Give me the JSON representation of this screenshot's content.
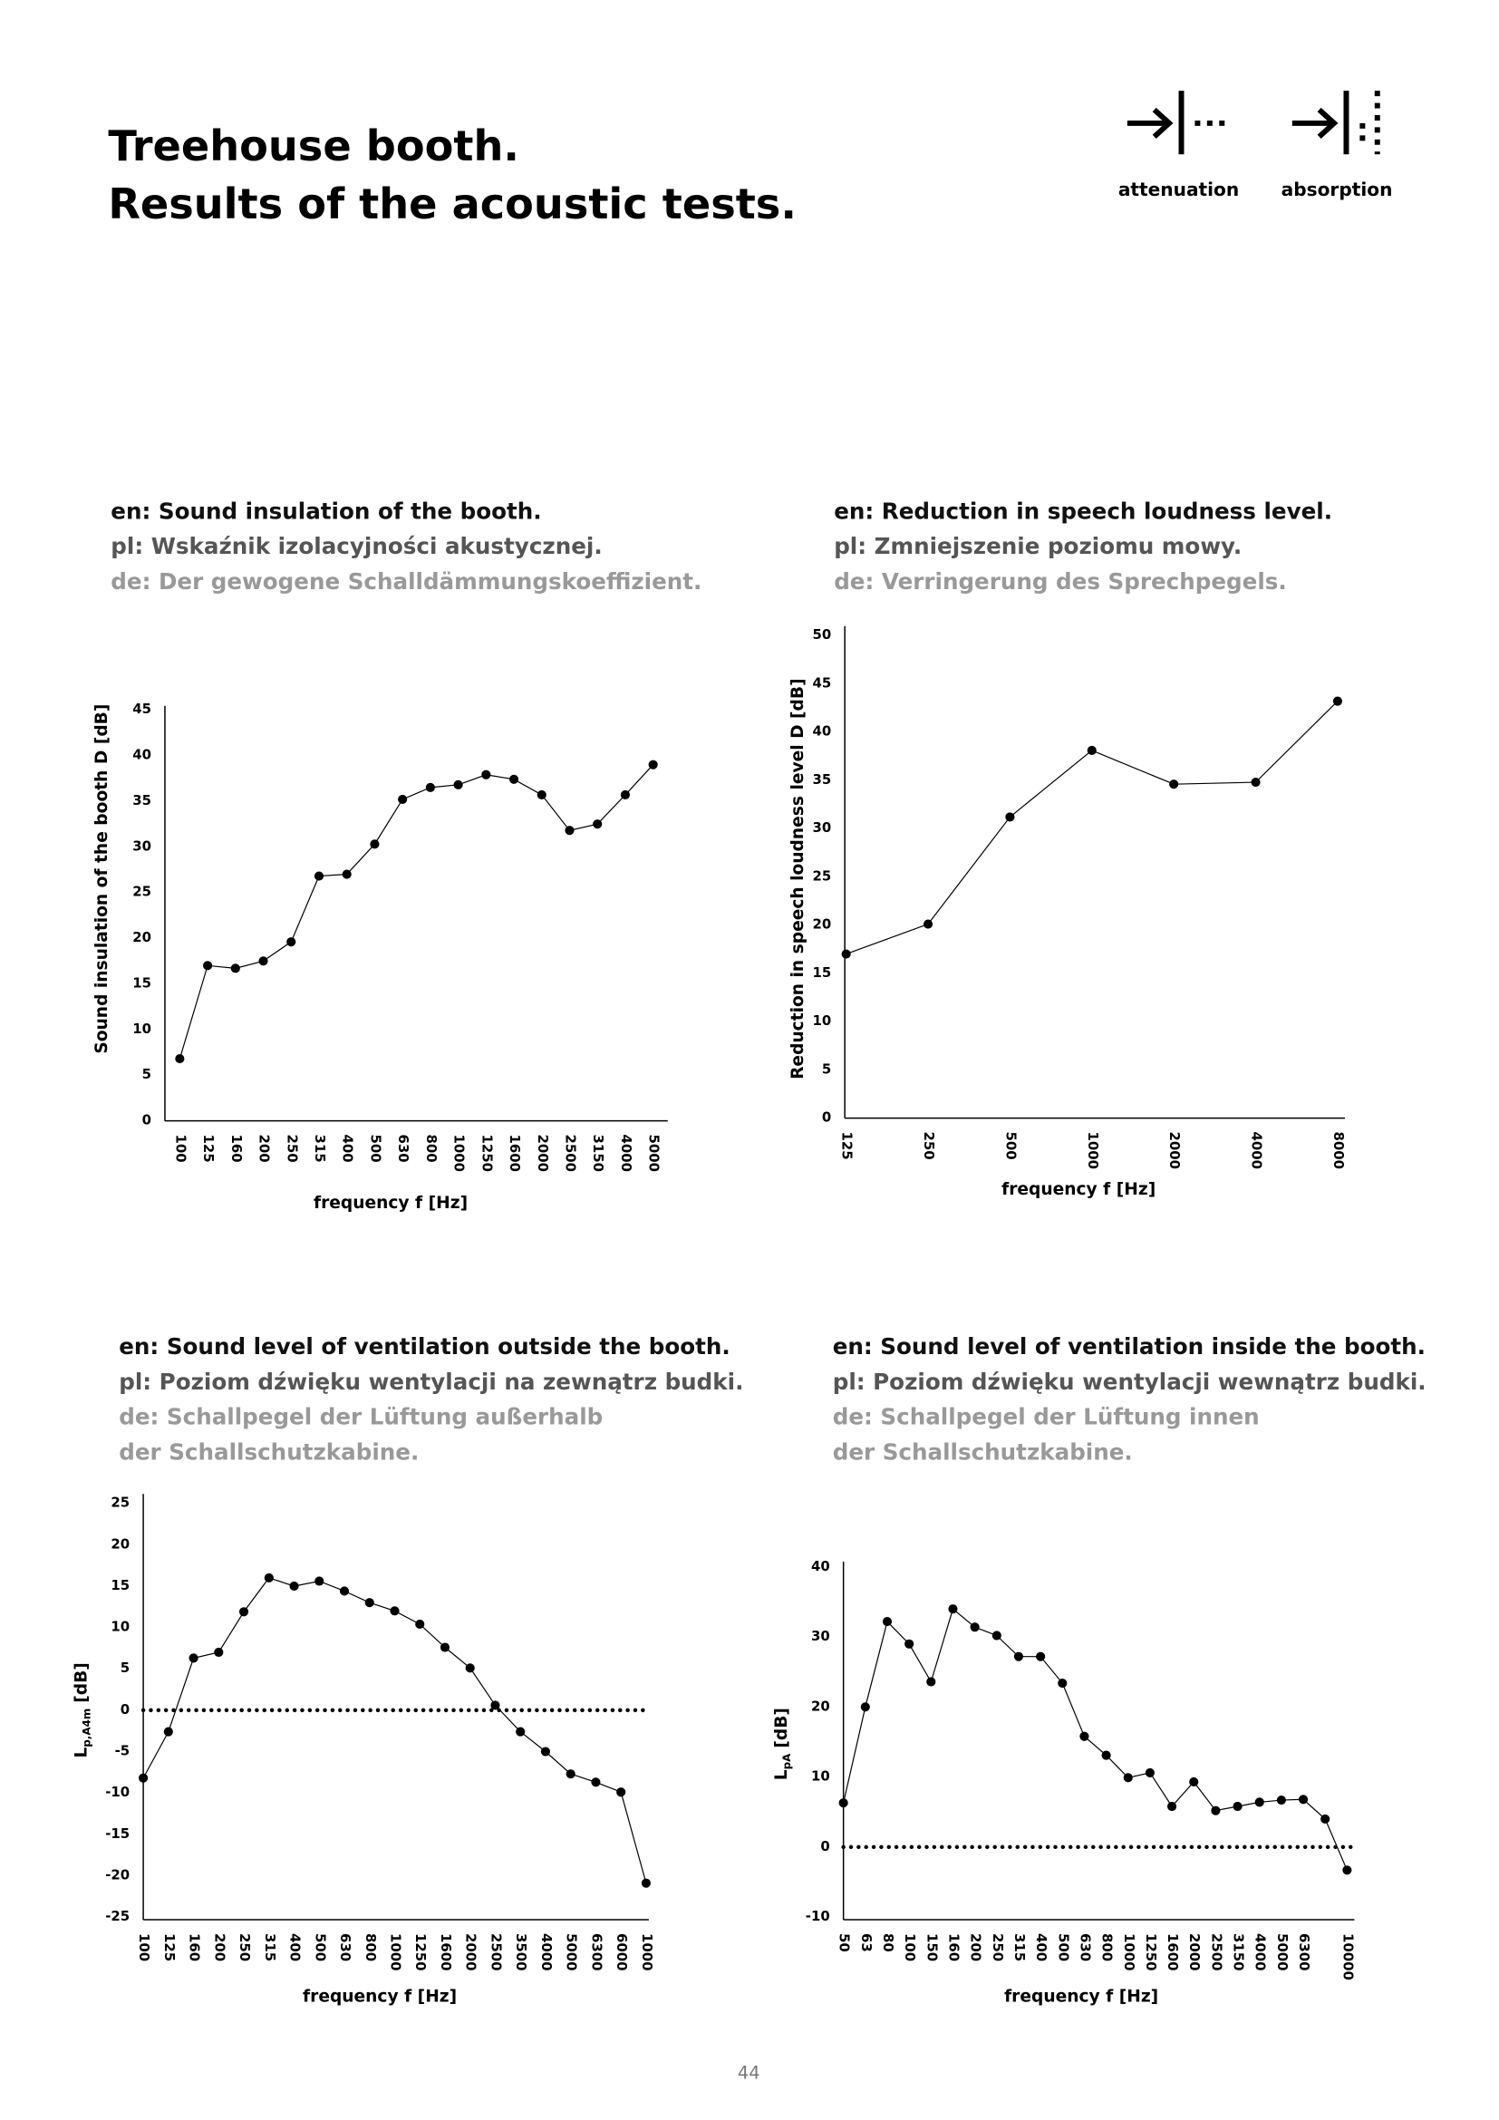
{
  "header": {
    "title": [
      "Treehouse booth.",
      "Results of the acoustic tests."
    ],
    "icons": [
      "attenuation",
      "absorption"
    ]
  },
  "page_number": "44",
  "chart_data": [
    {
      "type": "line",
      "heading": [
        "en: Sound insulation of the booth.",
        "pl: Wskaźnik izolacyjności akustycznej.",
        "de: Der gewogene Schalldämmungskoeffizient."
      ],
      "x_label": "frequency f [Hz]",
      "y_label": {
        "main": "Sound insulation of the booth  D [dB]"
      },
      "categories": [
        "100",
        "125",
        "160",
        "200",
        "250",
        "315",
        "400",
        "500",
        "630",
        "800",
        "1000",
        "1250",
        "1600",
        "2000",
        "2500",
        "3150",
        "4000",
        "5000"
      ],
      "values": [
        6.8,
        17,
        16.7,
        17.5,
        19.6,
        26.8,
        27,
        30.3,
        35.2,
        36.5,
        36.8,
        37.9,
        37.4,
        35.7,
        31.8,
        32.5,
        35.7,
        39
      ],
      "color": "#000000",
      "ylim": [
        0,
        45
      ],
      "yticks": [
        0,
        5,
        10,
        15,
        20,
        25,
        30,
        35,
        40,
        45
      ]
    },
    {
      "type": "line",
      "heading": [
        "en: Reduction in speech loudness level.",
        "pl: Zmniejszenie poziomu mowy.",
        "de: Verringerung des Sprechpegels."
      ],
      "x_label": "frequency f [Hz]",
      "y_label": {
        "main": "Reduction in speech loudness level D [dB]"
      },
      "categories": [
        "125",
        "250",
        "500",
        "1000",
        "2000",
        "4000",
        "8000"
      ],
      "values": [
        17,
        20.1,
        31.2,
        38.1,
        34.6,
        34.8,
        43.2
      ],
      "color": "#000000",
      "ylim": [
        0,
        50
      ],
      "yticks": [
        0,
        5,
        10,
        15,
        20,
        25,
        30,
        35,
        40,
        45,
        50
      ]
    },
    {
      "type": "line",
      "heading": [
        "en: Sound level of ventilation outside the booth.",
        "pl: Poziom dźwięku wentylacji na zewnątrz budki.",
        "de: Schallpegel der Lüftung außerhalb",
        "der Schallschutzkabine."
      ],
      "x_label": "frequency f [Hz]",
      "y_label": {
        "main": "L",
        "sub": "p,A4m",
        "unit": "[dB]"
      },
      "categories": [
        "100",
        "125",
        "160",
        "200",
        "250",
        "315",
        "400",
        "500",
        "630",
        "800",
        "1000",
        "1250",
        "1600",
        "2000",
        "2500",
        "3500",
        "4000",
        "5000",
        "6300",
        "6000",
        "1000"
      ],
      "values": [
        -8.2,
        -2.6,
        6.3,
        7,
        11.9,
        16,
        15,
        15.6,
        14.4,
        13,
        12,
        10.4,
        7.6,
        5.1,
        0.6,
        -2.6,
        -5,
        -7.7,
        -8.7,
        -9.9,
        -20.9
      ],
      "color": "#000000",
      "ylim": [
        -25,
        25
      ],
      "yticks": [
        25,
        20,
        15,
        10,
        5,
        0,
        -5,
        -10,
        -15,
        -20,
        -25
      ],
      "reference_line": 0
    },
    {
      "type": "line",
      "heading": [
        "en: Sound level of ventilation inside the booth.",
        "pl: Poziom dźwięku wentylacji wewnątrz budki.",
        "de: Schallpegel der Lüftung innen",
        "der Schallschutzkabine."
      ],
      "x_label": "frequency f [Hz]",
      "y_label": {
        "main": "L",
        "sub": "pA",
        "unit": "[dB]"
      },
      "categories": [
        "50",
        "63",
        "80",
        "100",
        "150",
        "160",
        "200",
        "250",
        "315",
        "400",
        "500",
        "630",
        "800",
        "1000",
        "1250",
        "1600",
        "2000",
        "2500",
        "3150",
        "4000",
        "5000",
        "6300",
        null,
        "10000"
      ],
      "values": [
        6.3,
        20,
        32.2,
        29,
        23.6,
        34,
        31.4,
        30.2,
        27.2,
        27.2,
        23.4,
        15.8,
        13.1,
        9.9,
        10.6,
        5.8,
        9.3,
        5.2,
        5.8,
        6.4,
        6.7,
        6.8,
        4,
        -3.3
      ],
      "color": "#000000",
      "ylim": [
        -10,
        40
      ],
      "yticks": [
        -10,
        0,
        10,
        20,
        30,
        40
      ],
      "reference_line": 0
    }
  ]
}
